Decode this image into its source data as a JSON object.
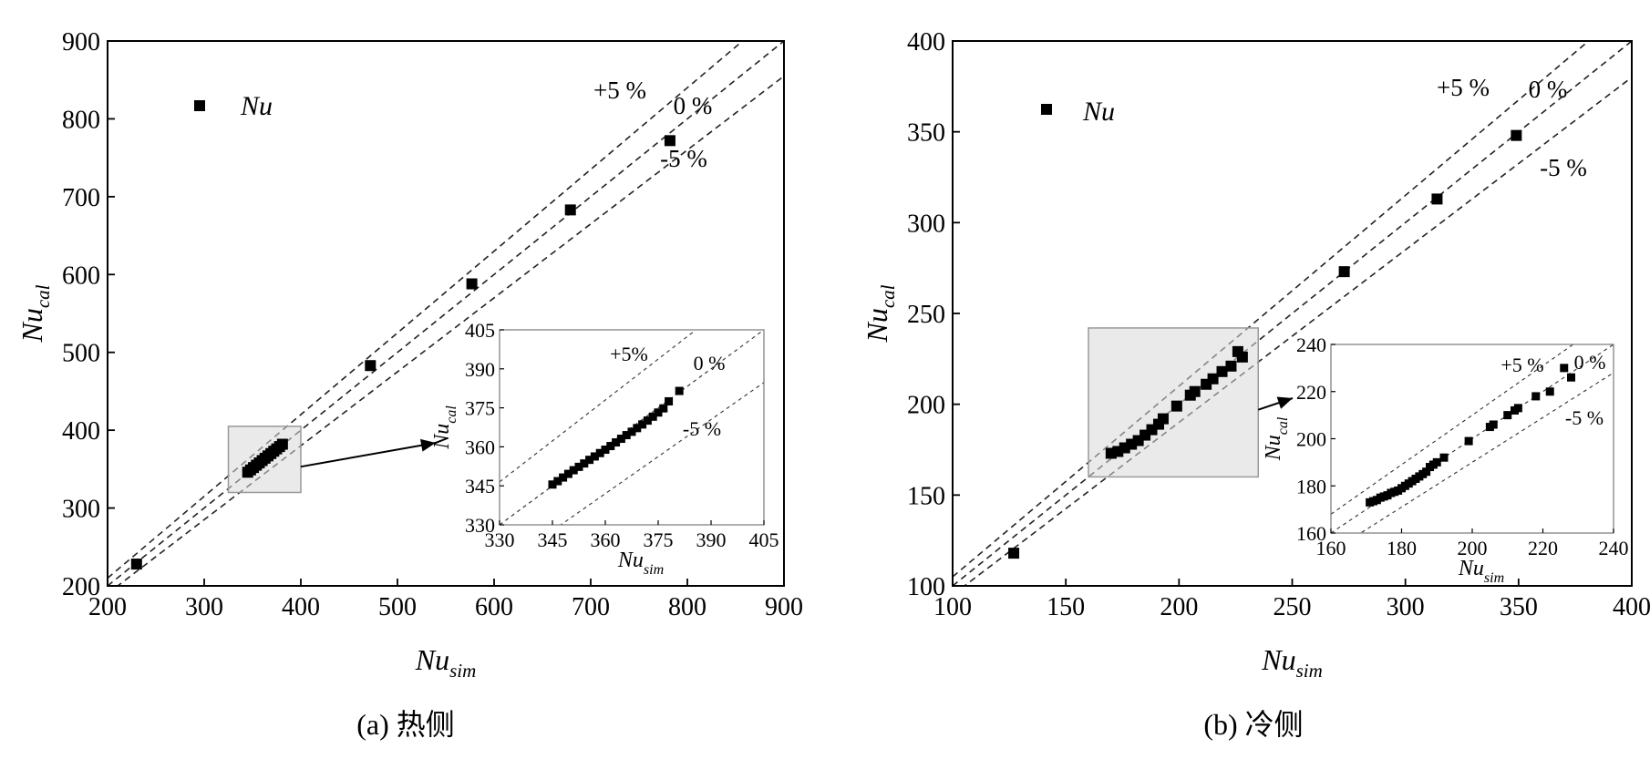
{
  "chart_data": [
    {
      "id": "a",
      "type": "scatter",
      "caption": "(a) 热侧",
      "xlabel": {
        "main": "Nu",
        "sub": "sim"
      },
      "ylabel": {
        "main": "Nu",
        "sub": "cal"
      },
      "xlim": [
        200,
        900
      ],
      "ylim": [
        200,
        900
      ],
      "xticks": [
        200,
        300,
        400,
        500,
        600,
        700,
        800,
        900
      ],
      "yticks": [
        200,
        300,
        400,
        500,
        600,
        700,
        800,
        900
      ],
      "legend": {
        "label": "Nu",
        "position": "top-left"
      },
      "reference_lines": [
        {
          "label": "+5 %",
          "factor": 1.05
        },
        {
          "label": "0 %",
          "factor": 1.0
        },
        {
          "label": "-5 %",
          "factor": 0.95
        }
      ],
      "series": [
        {
          "x": [
            230,
            345,
            348,
            351,
            354,
            357,
            360,
            363,
            366,
            369,
            372,
            375,
            378,
            381,
            472,
            577,
            679,
            782
          ],
          "y": [
            228,
            346,
            349,
            352,
            355,
            358,
            361,
            364,
            367,
            370,
            373,
            376,
            379,
            382,
            483,
            588,
            683,
            772
          ]
        }
      ],
      "zoom_box": {
        "x": [
          325,
          400
        ],
        "y": [
          320,
          405
        ]
      },
      "inset": {
        "xlabel": {
          "main": "Nu",
          "sub": "sim"
        },
        "ylabel": {
          "main": "Nu",
          "sub": "cal"
        },
        "xlim": [
          330,
          405
        ],
        "ylim": [
          330,
          405
        ],
        "xticks": [
          330,
          345,
          360,
          375,
          390,
          405
        ],
        "yticks": [
          330,
          345,
          360,
          375,
          390,
          405
        ],
        "reference_lines": [
          {
            "label": "+5%",
            "factor": 1.05
          },
          {
            "label": "0 %",
            "factor": 1.0
          },
          {
            "label": "-5 %",
            "factor": 0.95
          }
        ],
        "series": [
          {
            "x": [
              345,
              346.5,
              348,
              349.5,
              351,
              352.5,
              354,
              355.5,
              357,
              358.5,
              360,
              361.5,
              363,
              364.5,
              366,
              367.5,
              369,
              370.5,
              372,
              373.5,
              375,
              376.5,
              378,
              381
            ],
            "y": [
              345.5,
              346.8,
              348.2,
              349.6,
              351,
              352.3,
              353.6,
              355,
              356.3,
              357.6,
              358.9,
              360.3,
              361.7,
              363.1,
              364.5,
              365.8,
              367.2,
              368.6,
              370.1,
              371.6,
              373.2,
              374.8,
              377.5,
              381.5
            ]
          }
        ]
      }
    },
    {
      "id": "b",
      "type": "scatter",
      "caption": "(b) 冷侧",
      "xlabel": {
        "main": "Nu",
        "sub": "sim"
      },
      "ylabel": {
        "main": "Nu",
        "sub": "cal"
      },
      "xlim": [
        100,
        400
      ],
      "ylim": [
        100,
        400
      ],
      "xticks": [
        100,
        150,
        200,
        250,
        300,
        350,
        400
      ],
      "yticks": [
        100,
        150,
        200,
        250,
        300,
        350,
        400
      ],
      "legend": {
        "label": "Nu",
        "position": "top-left"
      },
      "reference_lines": [
        {
          "label": "+5 %",
          "factor": 1.05
        },
        {
          "label": "0 %",
          "factor": 1.0
        },
        {
          "label": "-5 %",
          "factor": 0.95
        }
      ],
      "series": [
        {
          "x": [
            127,
            170,
            173,
            176,
            179,
            182,
            185,
            188,
            191,
            193,
            199,
            205,
            207,
            212,
            215,
            219,
            223,
            226,
            228,
            273,
            314,
            349
          ],
          "y": [
            118,
            173,
            174,
            176,
            178,
            180,
            183,
            186,
            189,
            192,
            199,
            205,
            207,
            211,
            214,
            218,
            221,
            229,
            226,
            273,
            313,
            348
          ]
        }
      ],
      "zoom_box": {
        "x": [
          160,
          235
        ],
        "y": [
          160,
          242
        ]
      },
      "inset": {
        "xlabel": {
          "main": "Nu",
          "sub": "sim"
        },
        "ylabel": {
          "main": "Nu",
          "sub": "cal"
        },
        "xlim": [
          160,
          240
        ],
        "ylim": [
          160,
          240
        ],
        "xticks": [
          160,
          180,
          200,
          220,
          240
        ],
        "yticks": [
          160,
          180,
          200,
          220,
          240
        ],
        "reference_lines": [
          {
            "label": "+5 %",
            "factor": 1.05
          },
          {
            "label": "0 %",
            "factor": 1.0
          },
          {
            "label": "-5 %",
            "factor": 0.95
          }
        ],
        "series": [
          {
            "x": [
              171,
              172,
              173,
              174,
              175,
              176,
              177,
              178,
              179,
              180,
              181,
              182,
              183,
              184,
              185,
              186,
              187,
              188,
              189,
              190,
              192,
              199,
              205,
              206,
              210,
              212,
              213,
              218,
              222,
              226,
              228
            ],
            "y": [
              173,
              173.5,
              174,
              175,
              175.5,
              176,
              177,
              177.5,
              178,
              179,
              180,
              181,
              182,
              183,
              184,
              185,
              186,
              188,
              189,
              190,
              192,
              199,
              205,
              206,
              210,
              212,
              213,
              218,
              220,
              230,
              226
            ]
          }
        ]
      }
    }
  ]
}
